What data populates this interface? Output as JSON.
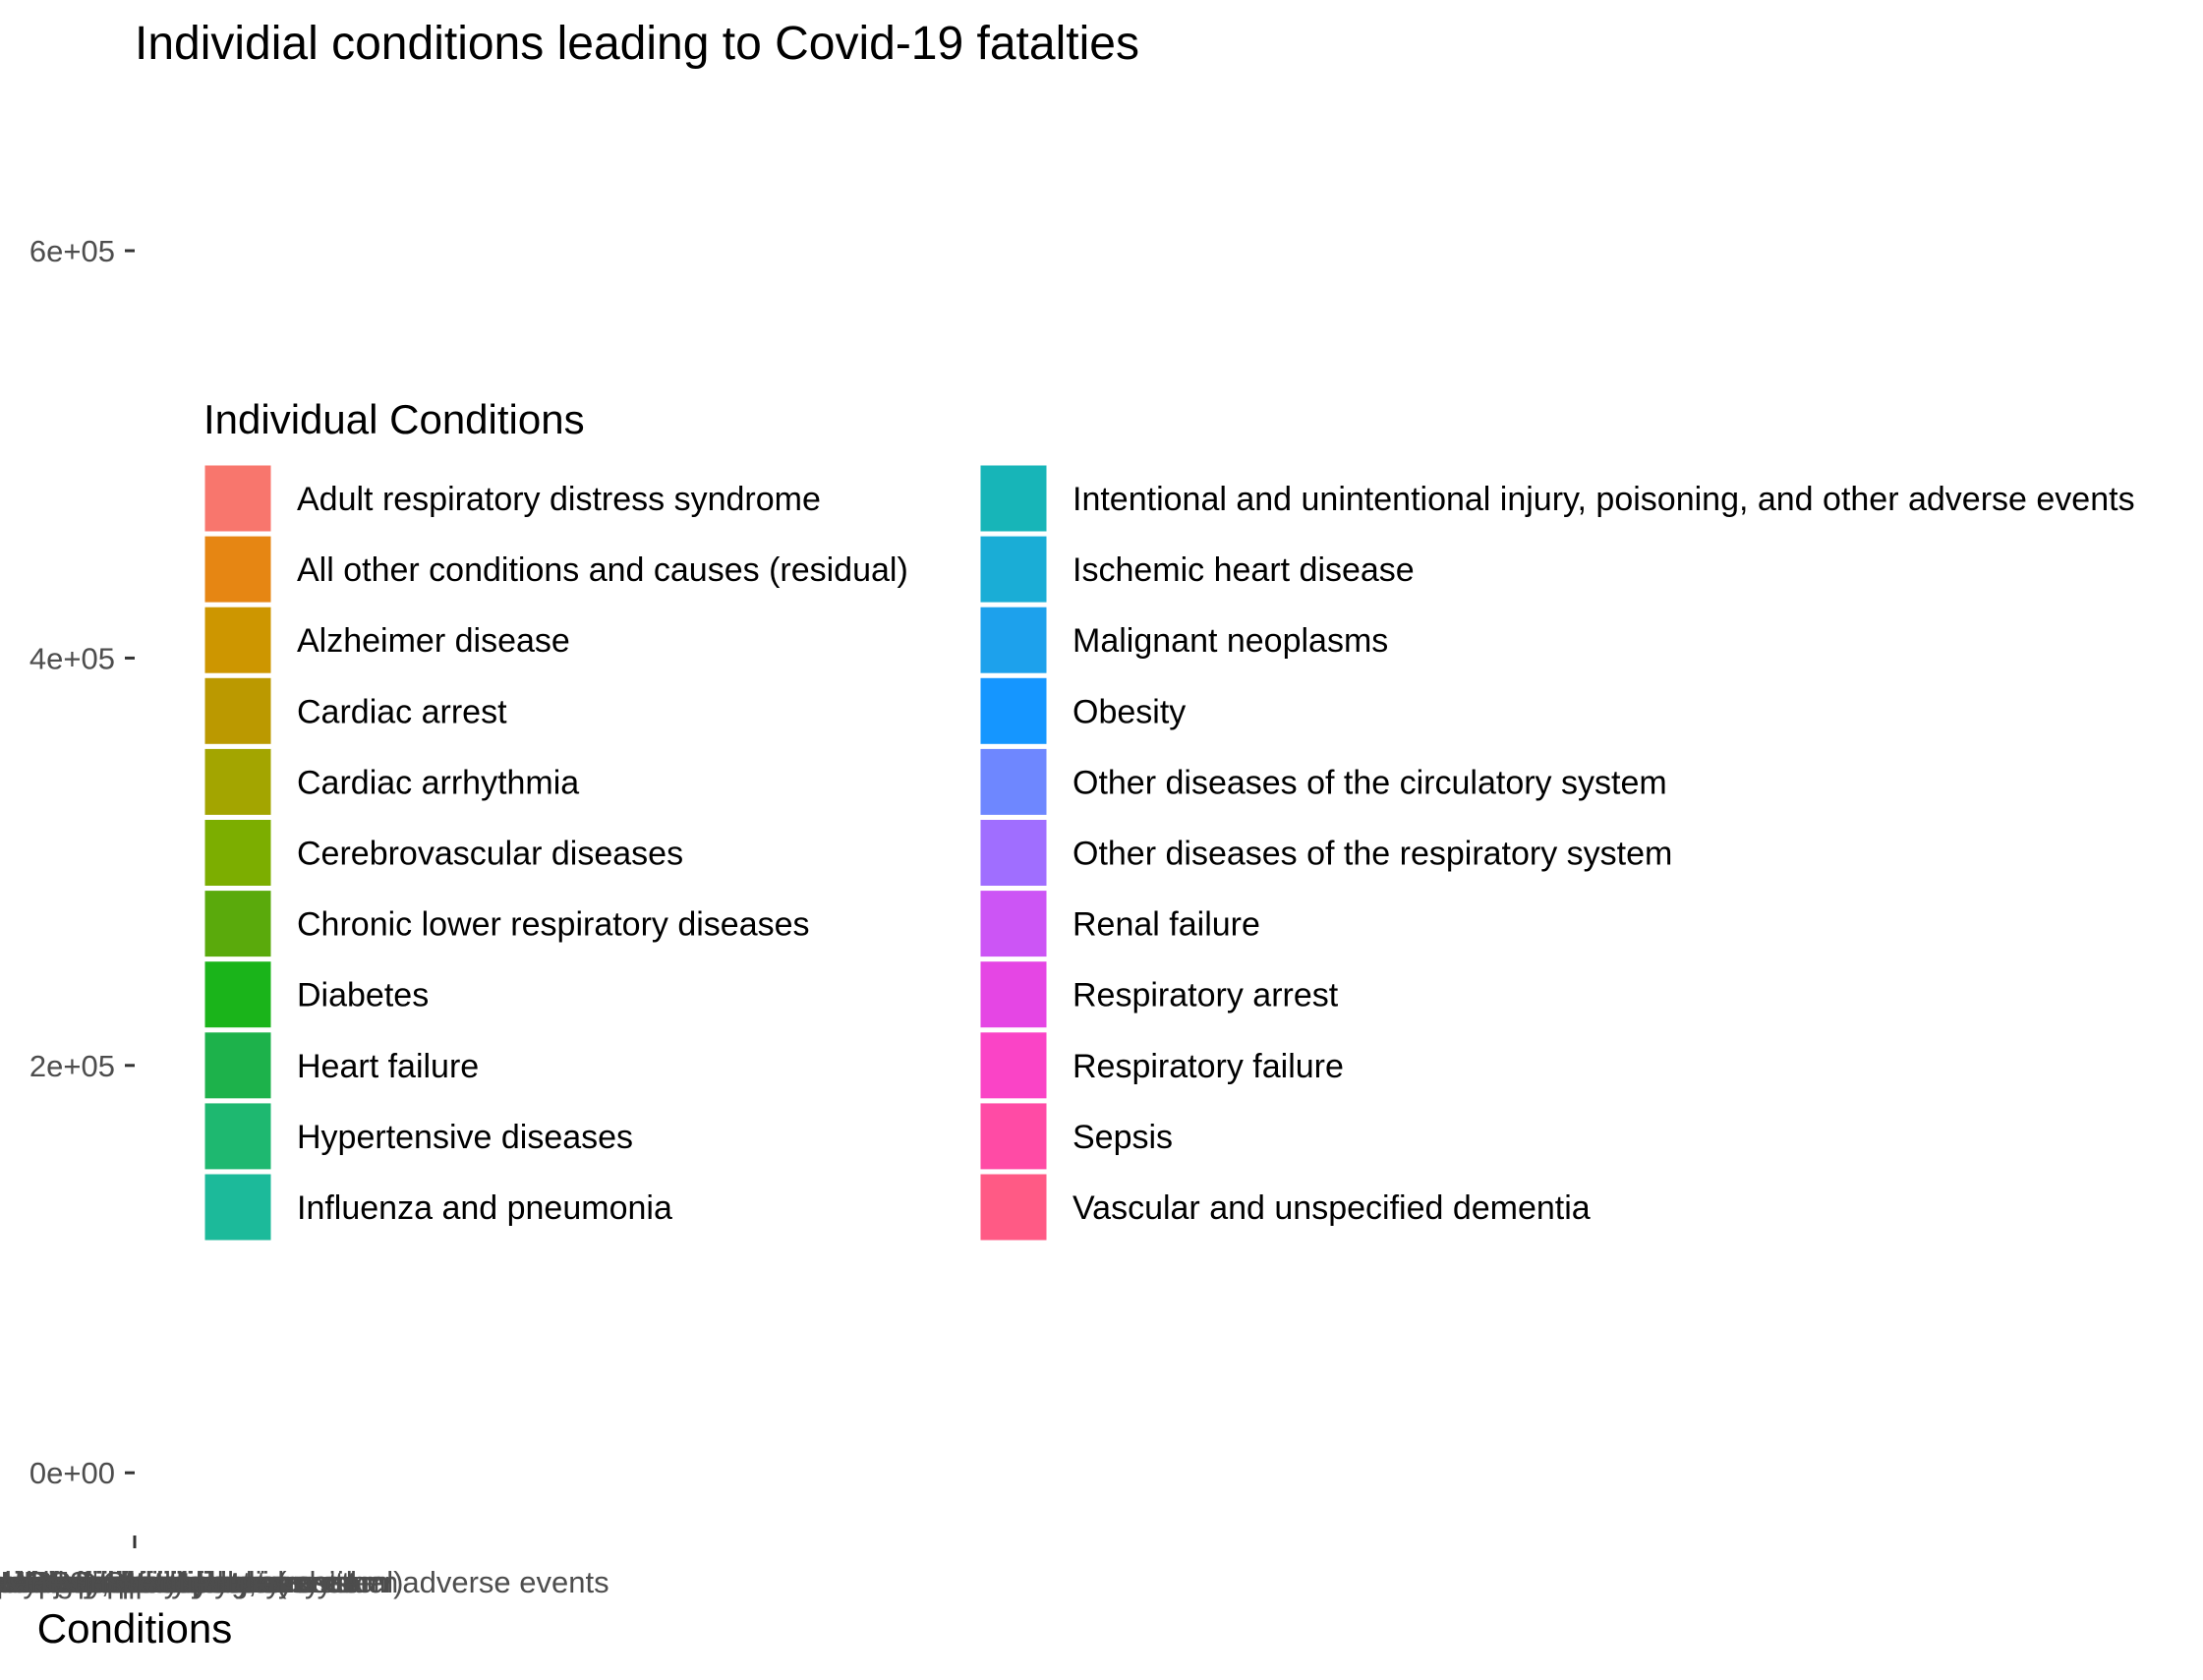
{
  "chart_data": {
    "type": "bar",
    "title": "Individial conditions leading to Covid-19 fatalties",
    "xlabel": "Conditions",
    "ylabel": "",
    "ylim": [
      -25000,
      670000
    ],
    "y_ticks": [
      0,
      200000,
      400000,
      600000
    ],
    "y_tick_labels": [
      "0e+00",
      "2e+05",
      "4e+05",
      "6e+05"
    ],
    "grid": false,
    "legend": {
      "title": "Individual Conditions",
      "placement": "overlapping-plot-left",
      "columns": 2
    },
    "categories": [
      "Adult respiratory distress syndrome",
      "All other conditions and causes (residual)",
      "Alzheimer disease",
      "Cardiac arrest",
      "Cardiac arrhythmia",
      "Cerebrovascular diseases",
      "Chronic lower respiratory diseases",
      "Diabetes",
      "Heart failure",
      "Hypertensive diseases",
      "Influenza and pneumonia",
      "Intentional and unintentional injury, poisoning, and other adverse events",
      "Ischemic heart disease",
      "Malignant neoplasms",
      "Obesity",
      "Other diseases of the circulatory system",
      "Other diseases of the respiratory system",
      "Renal failure",
      "Respiratory arrest",
      "Respiratory failure",
      "Sepsis",
      "Vascular and unspecified dementia"
    ],
    "colors": [
      "#F8766D",
      "#E88526",
      "#D39200",
      "#B79F00",
      "#93AA00",
      "#5EB300",
      "#00BA38",
      "#00BF74",
      "#00C19F",
      "#00BFC4",
      "#00B9E3",
      "#00ADFA",
      "#619CFF",
      "#AE87FF",
      "#DB72FB",
      "#F564E3",
      "#FF61C3",
      "#FF6A98",
      "#4DA900",
      "#1BB01F",
      "#17B24F",
      "#1DB78A"
    ],
    "legend_colors": [
      "#F8766D",
      "#E68613",
      "#CD9600",
      "#BB9900",
      "#A3A500",
      "#7CAE00",
      "#5AAA0C",
      "#1AB41A",
      "#1DB24B",
      "#1EB870",
      "#1CBA9A",
      "#17B5B8",
      "#1AADD6",
      "#1DA1EC",
      "#1596FF",
      "#6E87FF",
      "#A06EFF",
      "#CC55F5",
      "#E546E4",
      "#FA44C6",
      "#FF4BA5",
      "#FF5A85"
    ]
  }
}
